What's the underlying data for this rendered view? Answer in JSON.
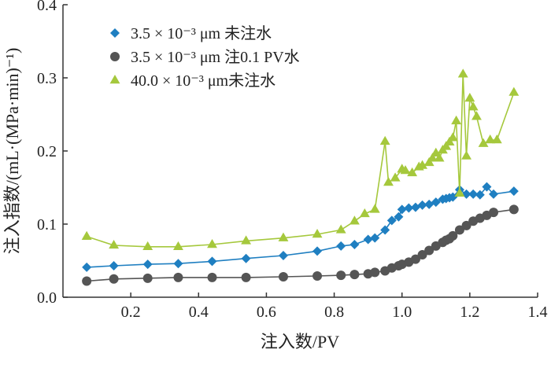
{
  "chart_data": {
    "type": "scatter",
    "xlabel": "注入数/PV",
    "ylabel": "注入指数/(mL·(MPa·min)⁻¹)",
    "xlim": [
      0,
      1.4
    ],
    "ylim": [
      0.0,
      0.4
    ],
    "x_ticks": [
      "0.2",
      "0.4",
      "0.6",
      "0.8",
      "1.0",
      "1.2",
      "1.4"
    ],
    "x_tick_values": [
      0.2,
      0.4,
      0.6,
      0.8,
      1.0,
      1.2,
      1.4
    ],
    "y_ticks": [
      "0.0",
      "0.1",
      "0.2",
      "0.3",
      "0.4"
    ],
    "y_tick_values": [
      0.0,
      0.1,
      0.2,
      0.3,
      0.4
    ],
    "grid": false,
    "legend_position": "top-left",
    "series": [
      {
        "name": "3.5 × 10⁻³  μm 未注水",
        "marker": "diamond",
        "color": "#1f7fc1",
        "line": true,
        "x": [
          0.07,
          0.15,
          0.25,
          0.34,
          0.44,
          0.54,
          0.65,
          0.75,
          0.82,
          0.86,
          0.9,
          0.92,
          0.95,
          0.97,
          0.99,
          1.0,
          1.02,
          1.04,
          1.06,
          1.08,
          1.1,
          1.12,
          1.13,
          1.14,
          1.15,
          1.17,
          1.19,
          1.21,
          1.23,
          1.25,
          1.27,
          1.33
        ],
        "y": [
          0.041,
          0.043,
          0.045,
          0.046,
          0.049,
          0.053,
          0.057,
          0.063,
          0.07,
          0.072,
          0.079,
          0.081,
          0.092,
          0.105,
          0.11,
          0.12,
          0.122,
          0.123,
          0.126,
          0.127,
          0.13,
          0.134,
          0.135,
          0.136,
          0.137,
          0.147,
          0.141,
          0.141,
          0.14,
          0.151,
          0.141,
          0.145
        ]
      },
      {
        "name": "3.5 × 10⁻³  μm 注0.1 PV水",
        "marker": "circle",
        "color": "#555555",
        "line": true,
        "x": [
          0.07,
          0.15,
          0.25,
          0.34,
          0.44,
          0.54,
          0.65,
          0.75,
          0.82,
          0.86,
          0.9,
          0.92,
          0.95,
          0.97,
          0.99,
          1.0,
          1.02,
          1.04,
          1.06,
          1.08,
          1.1,
          1.12,
          1.13,
          1.14,
          1.15,
          1.17,
          1.19,
          1.21,
          1.23,
          1.25,
          1.27,
          1.33
        ],
        "y": [
          0.022,
          0.025,
          0.026,
          0.027,
          0.027,
          0.027,
          0.028,
          0.029,
          0.03,
          0.031,
          0.032,
          0.034,
          0.036,
          0.04,
          0.043,
          0.045,
          0.048,
          0.052,
          0.058,
          0.064,
          0.07,
          0.075,
          0.078,
          0.08,
          0.084,
          0.092,
          0.098,
          0.104,
          0.108,
          0.112,
          0.116,
          0.12
        ]
      },
      {
        "name": "40.0  × 10⁻³  μm未注水",
        "marker": "triangle",
        "color": "#a5c83c",
        "line": true,
        "x": [
          0.07,
          0.15,
          0.25,
          0.34,
          0.44,
          0.54,
          0.65,
          0.75,
          0.82,
          0.86,
          0.89,
          0.92,
          0.95,
          0.96,
          0.98,
          1.0,
          1.01,
          1.03,
          1.05,
          1.06,
          1.08,
          1.09,
          1.1,
          1.11,
          1.12,
          1.13,
          1.14,
          1.15,
          1.16,
          1.17,
          1.18,
          1.19,
          1.2,
          1.21,
          1.22,
          1.24,
          1.26,
          1.28,
          1.33
        ],
        "y": [
          0.083,
          0.071,
          0.069,
          0.069,
          0.072,
          0.077,
          0.081,
          0.086,
          0.092,
          0.104,
          0.114,
          0.12,
          0.213,
          0.157,
          0.163,
          0.175,
          0.173,
          0.17,
          0.178,
          0.18,
          0.184,
          0.19,
          0.197,
          0.19,
          0.201,
          0.206,
          0.212,
          0.218,
          0.241,
          0.142,
          0.305,
          0.193,
          0.272,
          0.26,
          0.247,
          0.21,
          0.215,
          0.215,
          0.28
        ]
      }
    ]
  }
}
